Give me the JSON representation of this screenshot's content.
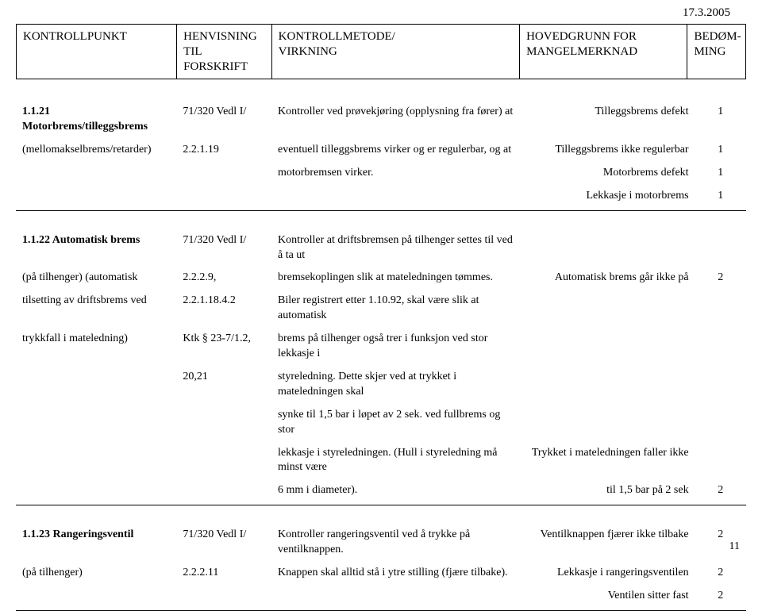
{
  "date": "17.3.2005",
  "header": {
    "col1": "KONTROLLPUNKT",
    "col2a": "HENVISNING",
    "col2b": "TIL FORSKRIFT",
    "col3a": "KONTROLLMETODE/",
    "col3b": "VIRKNING",
    "col4a": "HOVEDGRUNN FOR",
    "col4b": "MANGELMERKNAD",
    "col5a": "BEDØM-",
    "col5b": "MING"
  },
  "rows": [
    {
      "c1": [
        {
          "b": "1.1.21 Motorbrems/tilleggsbrems",
          "t": ""
        },
        {
          "b": "",
          "t": "(mellomakselbrems/retarder)"
        }
      ],
      "c2": [
        "71/320 Vedl I/",
        "2.2.1.19"
      ],
      "c3": [
        "Kontroller ved prøvekjøring (opplysning fra fører) at",
        "eventuell tilleggsbrems virker og er regulerbar, og at",
        "motorbremsen virker."
      ],
      "remarks": [
        {
          "t": "Tilleggsbrems defekt",
          "g": "1"
        },
        {
          "t": "Tilleggsbrems ikke regulerbar",
          "g": "1"
        },
        {
          "t": "Motorbrems defekt",
          "g": "1"
        },
        {
          "t": "Lekkasje i motorbrems",
          "g": "1"
        }
      ]
    },
    {
      "c1": [
        {
          "b": "1.1.22 Automatisk brems",
          "t": ""
        },
        {
          "b": "",
          "t": "(på tilhenger) (automatisk"
        },
        {
          "b": "",
          "t": "tilsetting av driftsbrems ved"
        },
        {
          "b": "",
          "t": "trykkfall i mateledning)"
        }
      ],
      "c2": [
        "71/320 Vedl I/",
        "2.2.2.9,",
        "2.2.1.18.4.2",
        "Ktk § 23-7/1.2,",
        "20,21"
      ],
      "c3": [
        "Kontroller at driftsbremsen på tilhenger settes til ved å ta ut",
        "bremsekoplingen slik at mateledningen tømmes.",
        "Biler registrert etter 1.10.92, skal være slik at automatisk",
        "brems på tilhenger også trer i funksjon ved stor lekkasje i",
        "styreledning. Dette skjer ved at trykket i mateledningen skal",
        "synke til 1,5 bar i løpet av 2 sek. ved fullbrems og stor",
        "lekkasje i styreledningen. (Hull i styreledning må minst være",
        "6 mm i diameter)."
      ],
      "remarks": [
        {
          "t": "",
          "g": ""
        },
        {
          "t": "Automatisk brems går ikke på",
          "g": "2"
        },
        {
          "t": "",
          "g": ""
        },
        {
          "t": "",
          "g": ""
        },
        {
          "t": "",
          "g": ""
        },
        {
          "t": "",
          "g": ""
        },
        {
          "t": "Trykket i mateledningen faller ikke",
          "g": ""
        },
        {
          "t": "til 1,5 bar på 2 sek",
          "g": "2"
        }
      ]
    },
    {
      "c1": [
        {
          "b": "1.1.23 Rangeringsventil",
          "t": ""
        },
        {
          "b": "",
          "t": "(på tilhenger)"
        }
      ],
      "c2": [
        "71/320 Vedl I/",
        "2.2.2.11"
      ],
      "c3": [
        "Kontroller rangeringsventil ved å trykke på ventilknappen.",
        "Knappen skal alltid stå i ytre stilling (fjære tilbake)."
      ],
      "remarks": [
        {
          "t": "Ventilknappen fjærer ikke tilbake",
          "g": "2"
        },
        {
          "t": "Lekkasje i rangeringsventilen",
          "g": "2"
        },
        {
          "t": "Ventilen sitter fast",
          "g": "2"
        }
      ]
    }
  ],
  "pagenum": "11"
}
